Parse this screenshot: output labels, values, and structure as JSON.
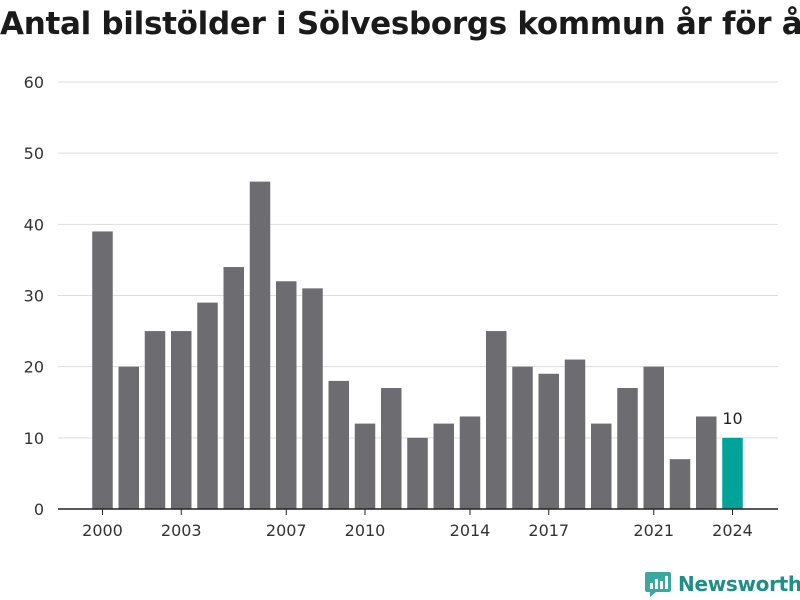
{
  "chart_data": {
    "type": "bar",
    "title": "Antal bilstölder i Sölvesborgs kommun år för år",
    "categories": [
      "2000",
      "2001",
      "2002",
      "2003",
      "2004",
      "2005",
      "2006",
      "2007",
      "2008",
      "2009",
      "2010",
      "2011",
      "2012",
      "2013",
      "2014",
      "2015",
      "2016",
      "2017",
      "2018",
      "2019",
      "2020",
      "2021",
      "2022",
      "2023",
      "2024"
    ],
    "values": [
      39,
      20,
      25,
      25,
      29,
      34,
      46,
      32,
      31,
      18,
      12,
      17,
      10,
      12,
      13,
      25,
      20,
      19,
      21,
      12,
      17,
      20,
      7,
      13,
      10
    ],
    "x_tick_labels": [
      "2000",
      "2003",
      "2007",
      "2010",
      "2014",
      "2017",
      "2021",
      "2024"
    ],
    "y_ticks": [
      0,
      10,
      20,
      30,
      40,
      50,
      60
    ],
    "ylim": [
      0,
      60
    ],
    "xlabel": "",
    "ylabel": "",
    "grid": true,
    "highlight": {
      "category": "2024",
      "label": "10"
    },
    "colors": {
      "bar": "#6d6c71",
      "highlight": "#00a399",
      "grid": "#dddddd"
    }
  },
  "branding": {
    "name": "Newsworthy",
    "icon": "newsworthy-logo-icon",
    "color": "#1d8f85"
  }
}
